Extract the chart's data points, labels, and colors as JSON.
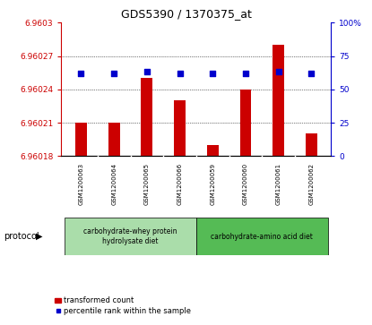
{
  "title": "GDS5390 / 1370375_at",
  "samples": [
    "GSM1200063",
    "GSM1200064",
    "GSM1200065",
    "GSM1200066",
    "GSM1200059",
    "GSM1200060",
    "GSM1200061",
    "GSM1200062"
  ],
  "bar_values": [
    6.96021,
    6.96021,
    6.96025,
    6.96023,
    6.96019,
    6.96024,
    6.96028,
    6.9602
  ],
  "bar_base": 6.96018,
  "percentile_values": [
    62,
    62,
    63,
    62,
    62,
    62,
    63,
    62
  ],
  "ylim_left": [
    6.96018,
    6.9603
  ],
  "ylim_right": [
    0,
    100
  ],
  "yticks_left": [
    6.96018,
    6.96021,
    6.96024,
    6.96027,
    6.9603
  ],
  "ytick_labels_left": [
    "6.96018",
    "6.96021",
    "6.96024",
    "6.96027",
    "6.9603"
  ],
  "yticks_right": [
    0,
    25,
    50,
    75,
    100
  ],
  "ytick_labels_right": [
    "0",
    "25",
    "50",
    "75",
    "100%"
  ],
  "bar_color": "#cc0000",
  "dot_color": "#0000cc",
  "grid_color": "#000000",
  "bg_color": "#ffffff",
  "plot_bg": "#ffffff",
  "sample_bg": "#cccccc",
  "protocol_color1": "#aaddaa",
  "protocol_color2": "#55bb55",
  "protocol_groups": [
    {
      "label": "carbohydrate-whey protein\nhydrolysate diet",
      "start": 0,
      "end": 4,
      "color": "#aaddaa"
    },
    {
      "label": "carbohydrate-amino acid diet",
      "start": 4,
      "end": 8,
      "color": "#55bb55"
    }
  ],
  "legend_bar_label": "transformed count",
  "legend_dot_label": "percentile rank within the sample",
  "protocol_label": "protocol",
  "figsize": [
    4.15,
    3.63
  ],
  "dpi": 100
}
